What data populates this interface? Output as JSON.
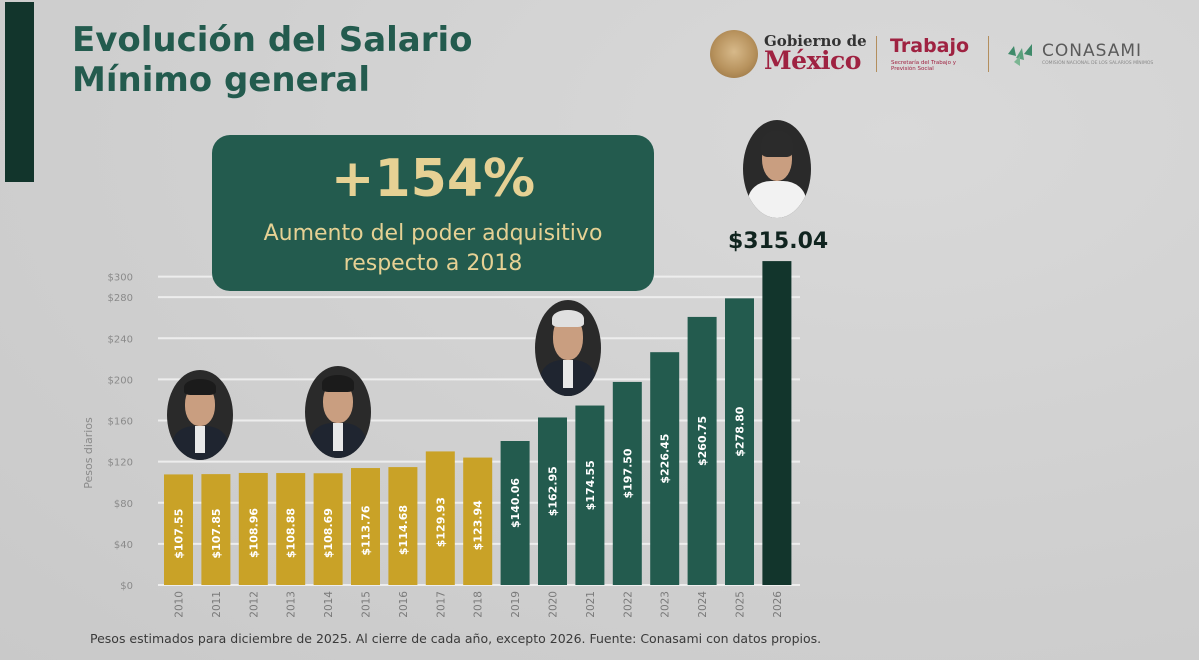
{
  "header": {
    "title_line1": "Evolución del Salario",
    "title_line2": "Mínimo general"
  },
  "logos": {
    "gob_top": "Gobierno de",
    "gob_bottom": "México",
    "trabajo": "Trabajo",
    "trabajo_sub": "Secretaría del Trabajo y Previsión Social",
    "conasami": "CONASAMI",
    "conasami_sub": "COMISIÓN NACIONAL DE LOS SALARIOS MÍNIMOS"
  },
  "callout": {
    "big": "+154%",
    "line1": "Aumento del poder adquisitivo",
    "line2": "respecto a 2018"
  },
  "footnote": "Pesos estimados para diciembre de 2025. Al cierre de cada año, excepto 2026. Fuente: Conasami con datos propios.",
  "colors": {
    "gold": "#c9a227",
    "green": "#235b4e",
    "dark_green": "#12352c"
  },
  "chart_data": {
    "type": "bar",
    "categories": [
      "2010",
      "2011",
      "2012",
      "2013",
      "2014",
      "2015",
      "2016",
      "2017",
      "2018",
      "2019",
      "2020",
      "2021",
      "2022",
      "2023",
      "2024",
      "2025",
      "2026"
    ],
    "values": [
      107.55,
      107.85,
      108.96,
      108.88,
      108.69,
      113.76,
      114.68,
      129.93,
      123.94,
      140.06,
      162.95,
      174.55,
      197.5,
      226.45,
      260.75,
      278.8,
      315.04
    ],
    "labels": [
      "$107.55",
      "$107.85",
      "$108.96",
      "$108.88",
      "$108.69",
      "$113.76",
      "$114.68",
      "$129.93",
      "$123.94",
      "$140.06",
      "$162.95",
      "$174.55",
      "$197.50",
      "$226.45",
      "$260.75",
      "$278.80",
      "$315.04"
    ],
    "bar_colors": [
      "#c9a227",
      "#c9a227",
      "#c9a227",
      "#c9a227",
      "#c9a227",
      "#c9a227",
      "#c9a227",
      "#c9a227",
      "#c9a227",
      "#235b4e",
      "#235b4e",
      "#235b4e",
      "#235b4e",
      "#235b4e",
      "#235b4e",
      "#235b4e",
      "#12352c"
    ],
    "ylabel": "Pesos diarios",
    "yticks": [
      0,
      40,
      80,
      120,
      160,
      200,
      240,
      280,
      300
    ],
    "ytick_labels": [
      "$0",
      "$40",
      "$80",
      "$120",
      "$160",
      "$200",
      "$240",
      "$280",
      "$300"
    ],
    "ylim": [
      0,
      320
    ],
    "grid": true,
    "highlight_label": "$315.04"
  }
}
